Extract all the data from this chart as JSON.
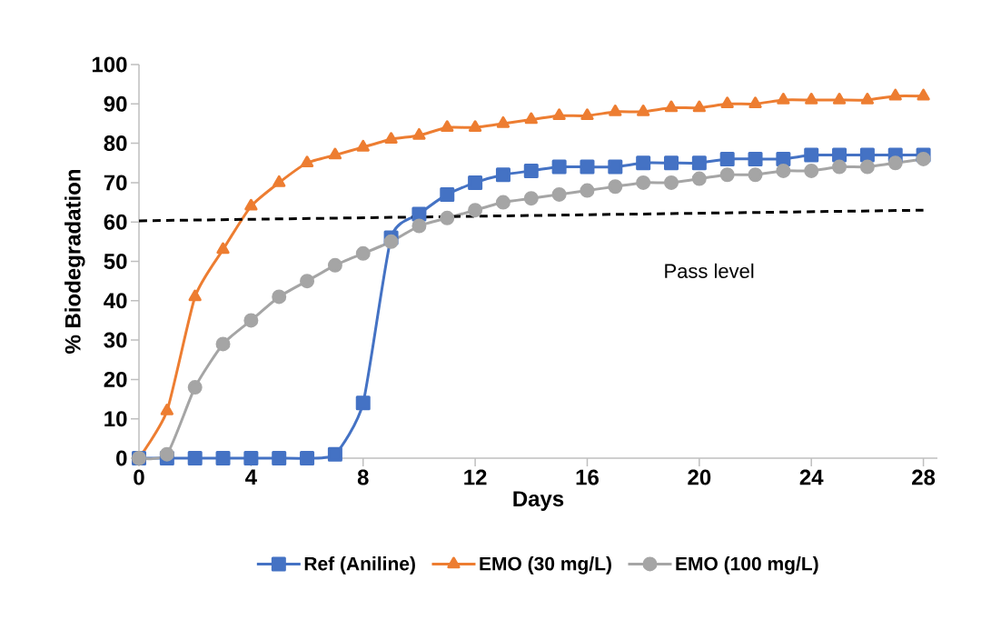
{
  "chart_data": {
    "type": "line",
    "xlabel": "Days",
    "ylabel": "% Biodegradation",
    "x": [
      0,
      1,
      2,
      3,
      4,
      5,
      6,
      7,
      8,
      9,
      10,
      11,
      12,
      13,
      14,
      15,
      16,
      17,
      18,
      19,
      20,
      21,
      22,
      23,
      24,
      25,
      26,
      27,
      28
    ],
    "series": [
      {
        "name": "Ref (Aniline)",
        "color": "#4472c4",
        "marker": "square",
        "values": [
          0,
          0,
          0,
          0,
          0,
          0,
          0,
          1,
          14,
          56,
          62,
          67,
          70,
          72,
          73,
          74,
          74,
          74,
          75,
          75,
          75,
          76,
          76,
          76,
          77,
          77,
          77,
          77,
          77
        ]
      },
      {
        "name": "EMO (30 mg/L)",
        "color": "#ed7d31",
        "marker": "triangle",
        "values": [
          0,
          12,
          41,
          53,
          64,
          70,
          75,
          77,
          79,
          81,
          82,
          84,
          84,
          85,
          86,
          87,
          87,
          88,
          88,
          89,
          89,
          90,
          90,
          91,
          91,
          91,
          91,
          92,
          92
        ]
      },
      {
        "name": "EMO (100 mg/L)",
        "color": "#a5a5a5",
        "marker": "circle",
        "values": [
          0,
          1,
          18,
          29,
          35,
          41,
          45,
          49,
          52,
          55,
          59,
          61,
          63,
          65,
          66,
          67,
          68,
          69,
          70,
          70,
          71,
          72,
          72,
          73,
          73,
          74,
          74,
          75,
          76
        ]
      },
      {
        "color": "#000000",
        "marker": "none",
        "line_style": "dashed",
        "x": [
          0,
          28
        ],
        "values": [
          60.3,
          63
        ]
      }
    ],
    "annotations": [
      "Pass level"
    ],
    "xlim": [
      0,
      28.5
    ],
    "ylim": [
      0,
      100
    ],
    "xticks": [
      0,
      4,
      8,
      12,
      16,
      20,
      24,
      28
    ],
    "yticks": [
      0,
      10,
      20,
      30,
      40,
      50,
      60,
      70,
      80,
      90,
      100
    ],
    "grid": false,
    "legend": "bottom"
  }
}
